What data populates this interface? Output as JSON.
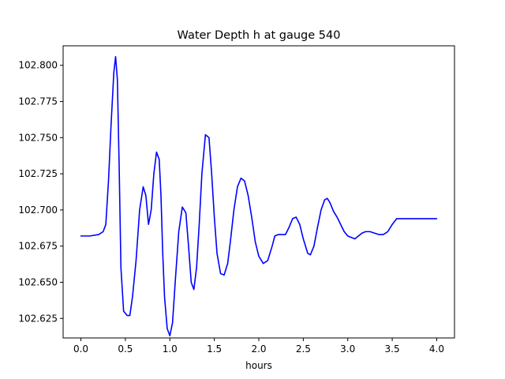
{
  "chart_data": {
    "type": "line",
    "title": "Water Depth h at gauge 540",
    "xlabel": "hours",
    "ylabel": "",
    "xlim": [
      -0.2,
      4.2
    ],
    "ylim": [
      102.6115,
      102.8135
    ],
    "grid": false,
    "x_ticks": [
      0.0,
      0.5,
      1.0,
      1.5,
      2.0,
      2.5,
      3.0,
      3.5,
      4.0
    ],
    "x_tick_labels": [
      "0.0",
      "0.5",
      "1.0",
      "1.5",
      "2.0",
      "2.5",
      "3.0",
      "3.5",
      "4.0"
    ],
    "y_ticks": [
      102.625,
      102.65,
      102.675,
      102.7,
      102.725,
      102.75,
      102.775,
      102.8
    ],
    "y_tick_labels": [
      "102.625",
      "102.650",
      "102.675",
      "102.700",
      "102.725",
      "102.750",
      "102.775",
      "102.800"
    ],
    "series": [
      {
        "color": "#0000ff",
        "x": [
          0.0,
          0.1,
          0.2,
          0.25,
          0.28,
          0.31,
          0.34,
          0.37,
          0.39,
          0.41,
          0.43,
          0.45,
          0.48,
          0.52,
          0.55,
          0.58,
          0.62,
          0.66,
          0.7,
          0.73,
          0.76,
          0.79,
          0.82,
          0.85,
          0.88,
          0.9,
          0.92,
          0.94,
          0.97,
          1.0,
          1.03,
          1.06,
          1.1,
          1.14,
          1.18,
          1.21,
          1.24,
          1.27,
          1.3,
          1.33,
          1.36,
          1.4,
          1.44,
          1.47,
          1.5,
          1.53,
          1.57,
          1.61,
          1.65,
          1.68,
          1.72,
          1.76,
          1.8,
          1.84,
          1.88,
          1.92,
          1.96,
          2.0,
          2.05,
          2.1,
          2.15,
          2.18,
          2.22,
          2.26,
          2.3,
          2.34,
          2.38,
          2.42,
          2.46,
          2.5,
          2.55,
          2.58,
          2.62,
          2.66,
          2.7,
          2.74,
          2.77,
          2.8,
          2.84,
          2.88,
          2.92,
          2.96,
          3.0,
          3.04,
          3.08,
          3.12,
          3.16,
          3.2,
          3.25,
          3.3,
          3.35,
          3.4,
          3.45,
          3.5,
          3.55,
          3.6,
          3.65,
          3.7,
          3.75,
          3.8,
          3.85,
          3.9,
          3.95,
          4.0
        ],
        "y": [
          102.682,
          102.682,
          102.683,
          102.685,
          102.69,
          102.72,
          102.76,
          102.795,
          102.806,
          102.79,
          102.73,
          102.66,
          102.63,
          102.627,
          102.627,
          102.64,
          102.665,
          102.7,
          102.716,
          102.71,
          102.69,
          102.7,
          102.725,
          102.74,
          102.735,
          102.71,
          102.67,
          102.64,
          102.618,
          102.613,
          102.622,
          102.65,
          102.685,
          102.702,
          102.698,
          102.675,
          102.65,
          102.645,
          102.66,
          102.69,
          102.725,
          102.752,
          102.75,
          102.725,
          102.695,
          102.67,
          102.656,
          102.655,
          102.663,
          102.678,
          102.7,
          102.716,
          102.722,
          102.72,
          102.71,
          102.695,
          102.678,
          102.668,
          102.663,
          102.665,
          102.675,
          102.682,
          102.683,
          102.683,
          102.683,
          102.688,
          102.694,
          102.695,
          102.69,
          102.68,
          102.67,
          102.669,
          102.675,
          102.688,
          102.7,
          102.707,
          102.708,
          102.705,
          102.699,
          102.695,
          102.69,
          102.685,
          102.682,
          102.681,
          102.68,
          102.682,
          102.684,
          102.685,
          102.685,
          102.684,
          102.683,
          102.683,
          102.685,
          102.69,
          102.694,
          102.694,
          102.694,
          102.694,
          102.694,
          102.694,
          102.694,
          102.694,
          102.694,
          102.694
        ]
      }
    ]
  }
}
